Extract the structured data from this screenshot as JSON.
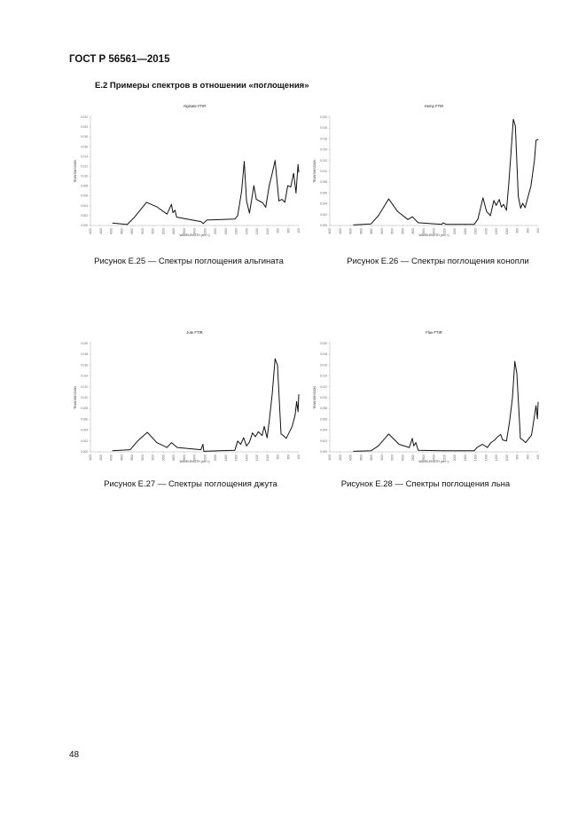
{
  "header": "ГОСТ Р 56561—2015",
  "section_title": "Е.2 Примеры спектров в отношении «поглощения»",
  "page_number": "48",
  "chart_data": [
    {
      "type": "line",
      "title": "Alginate FTIR",
      "xlabel": "WAVELENGTH (cm⁻¹)",
      "ylabel": "TRANSMISSION",
      "caption": "Рисунок Е.25 — Спектры поглощения альгината",
      "xlim": [
        4400,
        400
      ],
      "ylim": [
        0,
        0.022
      ],
      "xticks": [
        4400,
        4200,
        4000,
        3800,
        3600,
        3400,
        3200,
        3000,
        2800,
        2600,
        2400,
        2200,
        2000,
        1800,
        1600,
        1400,
        1200,
        1000,
        800,
        600,
        400
      ],
      "yticks": [
        "0.000",
        "0.002",
        "0.004",
        "0.006",
        "0.008",
        "0.010",
        "0.012",
        "0.014",
        "0.016",
        "0.018",
        "0.020",
        "0.022"
      ],
      "grid": false,
      "color": "#111111",
      "x": [
        3976,
        3693,
        3552,
        3325,
        3127,
        2929,
        2845,
        2816,
        2777,
        2743,
        2279,
        2234,
        2166,
        1628,
        1572,
        1498,
        1447,
        1402,
        1346,
        1261,
        1216,
        1091,
        1035,
        967,
        905,
        854,
        781,
        724,
        668,
        611,
        555,
        498,
        453,
        413,
        400
      ],
      "y": [
        0.0005,
        0.0002,
        0.0017,
        0.0047,
        0.0038,
        0.0023,
        0.0043,
        0.0026,
        0.0031,
        0.0017,
        0.0008,
        0.0004,
        0.0011,
        0.0013,
        0.002,
        0.0069,
        0.013,
        0.005,
        0.0025,
        0.0081,
        0.0053,
        0.0046,
        0.0037,
        0.0081,
        0.0108,
        0.0132,
        0.005,
        0.0053,
        0.0047,
        0.0081,
        0.0078,
        0.0106,
        0.0066,
        0.0124,
        0.0108
      ]
    },
    {
      "type": "line",
      "title": "Hemp FTIR",
      "xlabel": "WAVELENGTH (cm⁻¹)",
      "ylabel": "TRANSMISSION",
      "caption": "Рисунок Е.26 — Спектры поглощения конопли",
      "xlim": [
        4400,
        400
      ],
      "ylim": [
        0,
        0.02
      ],
      "xticks": [
        4400,
        4200,
        4000,
        3800,
        3600,
        3400,
        3200,
        3000,
        2800,
        2600,
        2400,
        2200,
        2000,
        1800,
        1600,
        1400,
        1200,
        1000,
        800,
        600,
        400
      ],
      "yticks": [
        "0.000",
        "0.002",
        "0.004",
        "0.006",
        "0.008",
        "0.010",
        "0.012",
        "0.014",
        "0.016",
        "0.018",
        "0.020"
      ],
      "grid": false,
      "color": "#111111",
      "x": [
        3948,
        3608,
        3467,
        3269,
        3099,
        2901,
        2816,
        2703,
        2251,
        2223,
        2166,
        1628,
        1555,
        1459,
        1391,
        1317,
        1250,
        1205,
        1148,
        1103,
        1063,
        1007,
        967,
        922,
        877,
        838,
        781,
        736,
        696,
        651,
        538,
        470,
        441,
        400
      ],
      "y": [
        0.0001,
        0.0003,
        0.0018,
        0.0049,
        0.0026,
        0.0011,
        0.0016,
        0.0005,
        0.0002,
        0.0005,
        0.0002,
        0.0002,
        0.0012,
        0.0051,
        0.0026,
        0.0018,
        0.0046,
        0.0037,
        0.0048,
        0.0034,
        0.0039,
        0.0028,
        0.0073,
        0.0132,
        0.0196,
        0.0184,
        0.0054,
        0.0032,
        0.0041,
        0.0033,
        0.0073,
        0.0121,
        0.0157,
        0.0159
      ]
    },
    {
      "type": "line",
      "title": "Jute FTIR",
      "xlabel": "WAVELENGTH (cm⁻¹)",
      "ylabel": "TRANSMISSION",
      "caption": "Рисунок Е.27 — Спектры поглощения джута",
      "xlim": [
        4400,
        400
      ],
      "ylim": [
        0,
        0.02
      ],
      "xticks": [
        4400,
        4200,
        4000,
        3800,
        3600,
        3400,
        3200,
        3000,
        2800,
        2600,
        2400,
        2200,
        2000,
        1800,
        1600,
        1400,
        1200,
        1000,
        800,
        600,
        400
      ],
      "yticks": [
        "0.000",
        "0.002",
        "0.004",
        "0.006",
        "0.008",
        "0.010",
        "0.012",
        "0.014",
        "0.016",
        "0.018",
        "0.020"
      ],
      "grid": false,
      "color": "#111111",
      "x": [
        3976,
        3636,
        3495,
        3308,
        3127,
        2929,
        2845,
        2732,
        2279,
        2240,
        2223,
        1628,
        1572,
        1515,
        1459,
        1402,
        1346,
        1289,
        1233,
        1176,
        1103,
        1063,
        1007,
        967,
        911,
        854,
        809,
        741,
        696,
        640,
        526,
        470,
        441,
        413,
        400
      ],
      "y": [
        0.0002,
        0.0004,
        0.002,
        0.0036,
        0.0017,
        0.0008,
        0.0017,
        0.0008,
        0.0004,
        0.0014,
        0.0001,
        0.0003,
        0.002,
        0.0014,
        0.0026,
        0.0011,
        0.0018,
        0.0035,
        0.0028,
        0.0037,
        0.003,
        0.0047,
        0.0026,
        0.0057,
        0.0106,
        0.0172,
        0.016,
        0.0033,
        0.003,
        0.0025,
        0.0047,
        0.0068,
        0.0093,
        0.0074,
        0.0106
      ]
    },
    {
      "type": "line",
      "title": "Flax FTIR",
      "xlabel": "WAVELENGTH (cm⁻¹)",
      "ylabel": "TRANSMISSION",
      "caption": "Рисунок Е.28 — Спектры поглощения льна",
      "xlim": [
        4400,
        400
      ],
      "ylim": [
        0,
        0.02
      ],
      "xticks": [
        4400,
        4200,
        4000,
        3800,
        3600,
        3400,
        3200,
        3000,
        2800,
        2600,
        2400,
        2200,
        2000,
        1800,
        1600,
        1400,
        1200,
        1000,
        800,
        600,
        400
      ],
      "yticks": [
        "0.000",
        "0.002",
        "0.004",
        "0.006",
        "0.008",
        "0.010",
        "0.012",
        "0.014",
        "0.016",
        "0.018",
        "0.020"
      ],
      "grid": false,
      "color": "#111111",
      "x": [
        3948,
        3608,
        3467,
        3269,
        3071,
        2873,
        2816,
        2788,
        2748,
        2703,
        2223,
        1628,
        1572,
        1470,
        1374,
        1306,
        1233,
        1176,
        1120,
        1080,
        1007,
        950,
        894,
        848,
        809,
        741,
        696,
        640,
        526,
        441,
        413,
        400
      ],
      "y": [
        0.0001,
        0.0002,
        0.0011,
        0.0033,
        0.0014,
        0.0008,
        0.0025,
        0.0011,
        0.0017,
        0.0003,
        0.0002,
        0.0002,
        0.0008,
        0.0014,
        0.0008,
        0.0017,
        0.0022,
        0.0028,
        0.0032,
        0.0022,
        0.002,
        0.0055,
        0.0099,
        0.0167,
        0.0145,
        0.0025,
        0.0022,
        0.0017,
        0.0031,
        0.0085,
        0.0061,
        0.0092
      ]
    }
  ]
}
